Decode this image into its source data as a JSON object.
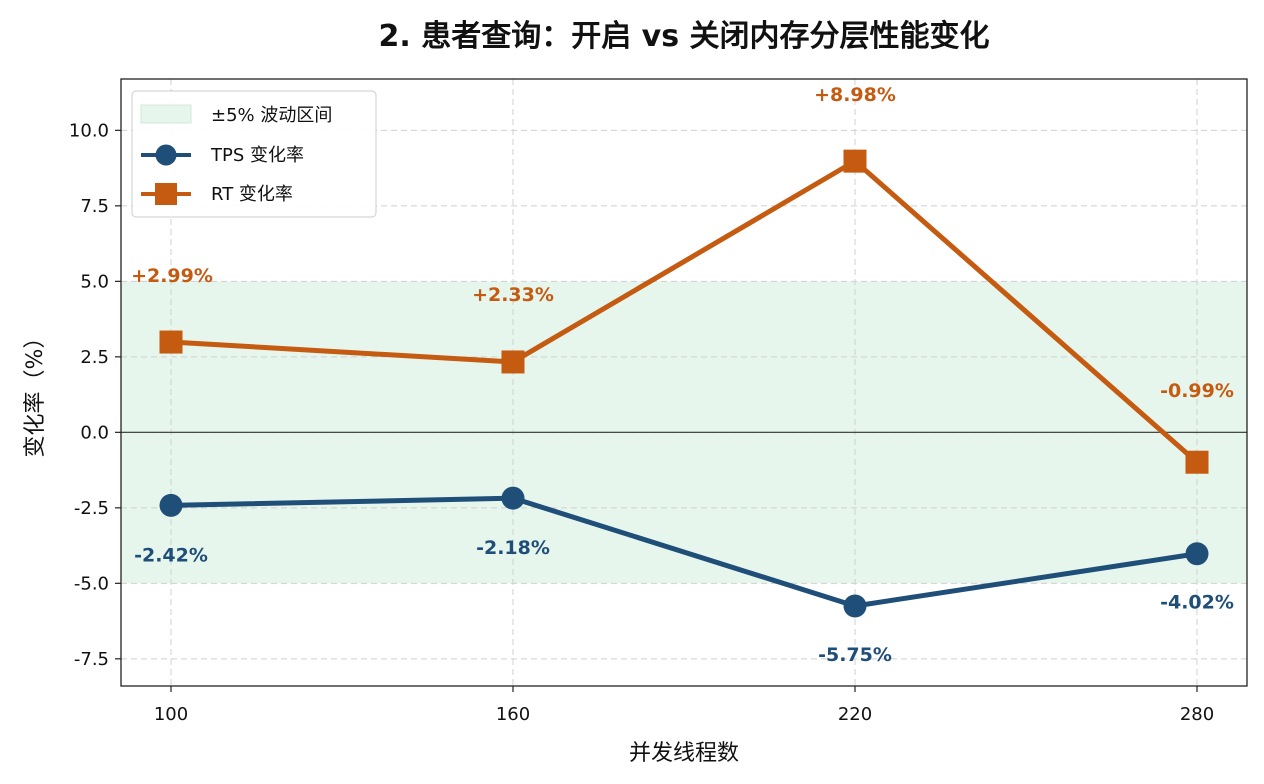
{
  "chart_data": {
    "type": "line",
    "title": "2. 患者查询：开启 vs 关闭内存分层性能变化",
    "xlabel": "并发线程数",
    "ylabel": "变化率（%）",
    "categories": [
      "100",
      "160",
      "220",
      "280"
    ],
    "x": [
      100,
      160,
      220,
      280
    ],
    "ylim": [
      -8.4,
      11.7
    ],
    "yticks": [
      "-7.5",
      "-5.0",
      "-2.5",
      "0.0",
      "2.5",
      "5.0",
      "7.5",
      "10.0"
    ],
    "ytick_values": [
      -7.5,
      -5.0,
      -2.5,
      0.0,
      2.5,
      5.0,
      7.5,
      10.0
    ],
    "grid": true,
    "legend_position": "top-left",
    "band": {
      "name": "±5% 波动区间",
      "low": -5,
      "high": 5,
      "color": "#e6f6ec"
    },
    "zero_line": true,
    "series": [
      {
        "name": "TPS 变化率",
        "marker": "circle",
        "color": "#1f4e79",
        "values": [
          -2.42,
          -2.18,
          -5.75,
          -4.02
        ],
        "labels": [
          "-2.42%",
          "-2.18%",
          "-5.75%",
          "-4.02%"
        ]
      },
      {
        "name": "RT 变化率",
        "marker": "square",
        "color": "#c55a11",
        "values": [
          2.99,
          2.33,
          8.98,
          -0.99
        ],
        "labels": [
          "+2.99%",
          "+2.33%",
          "+8.98%",
          "-0.99%"
        ]
      }
    ]
  }
}
